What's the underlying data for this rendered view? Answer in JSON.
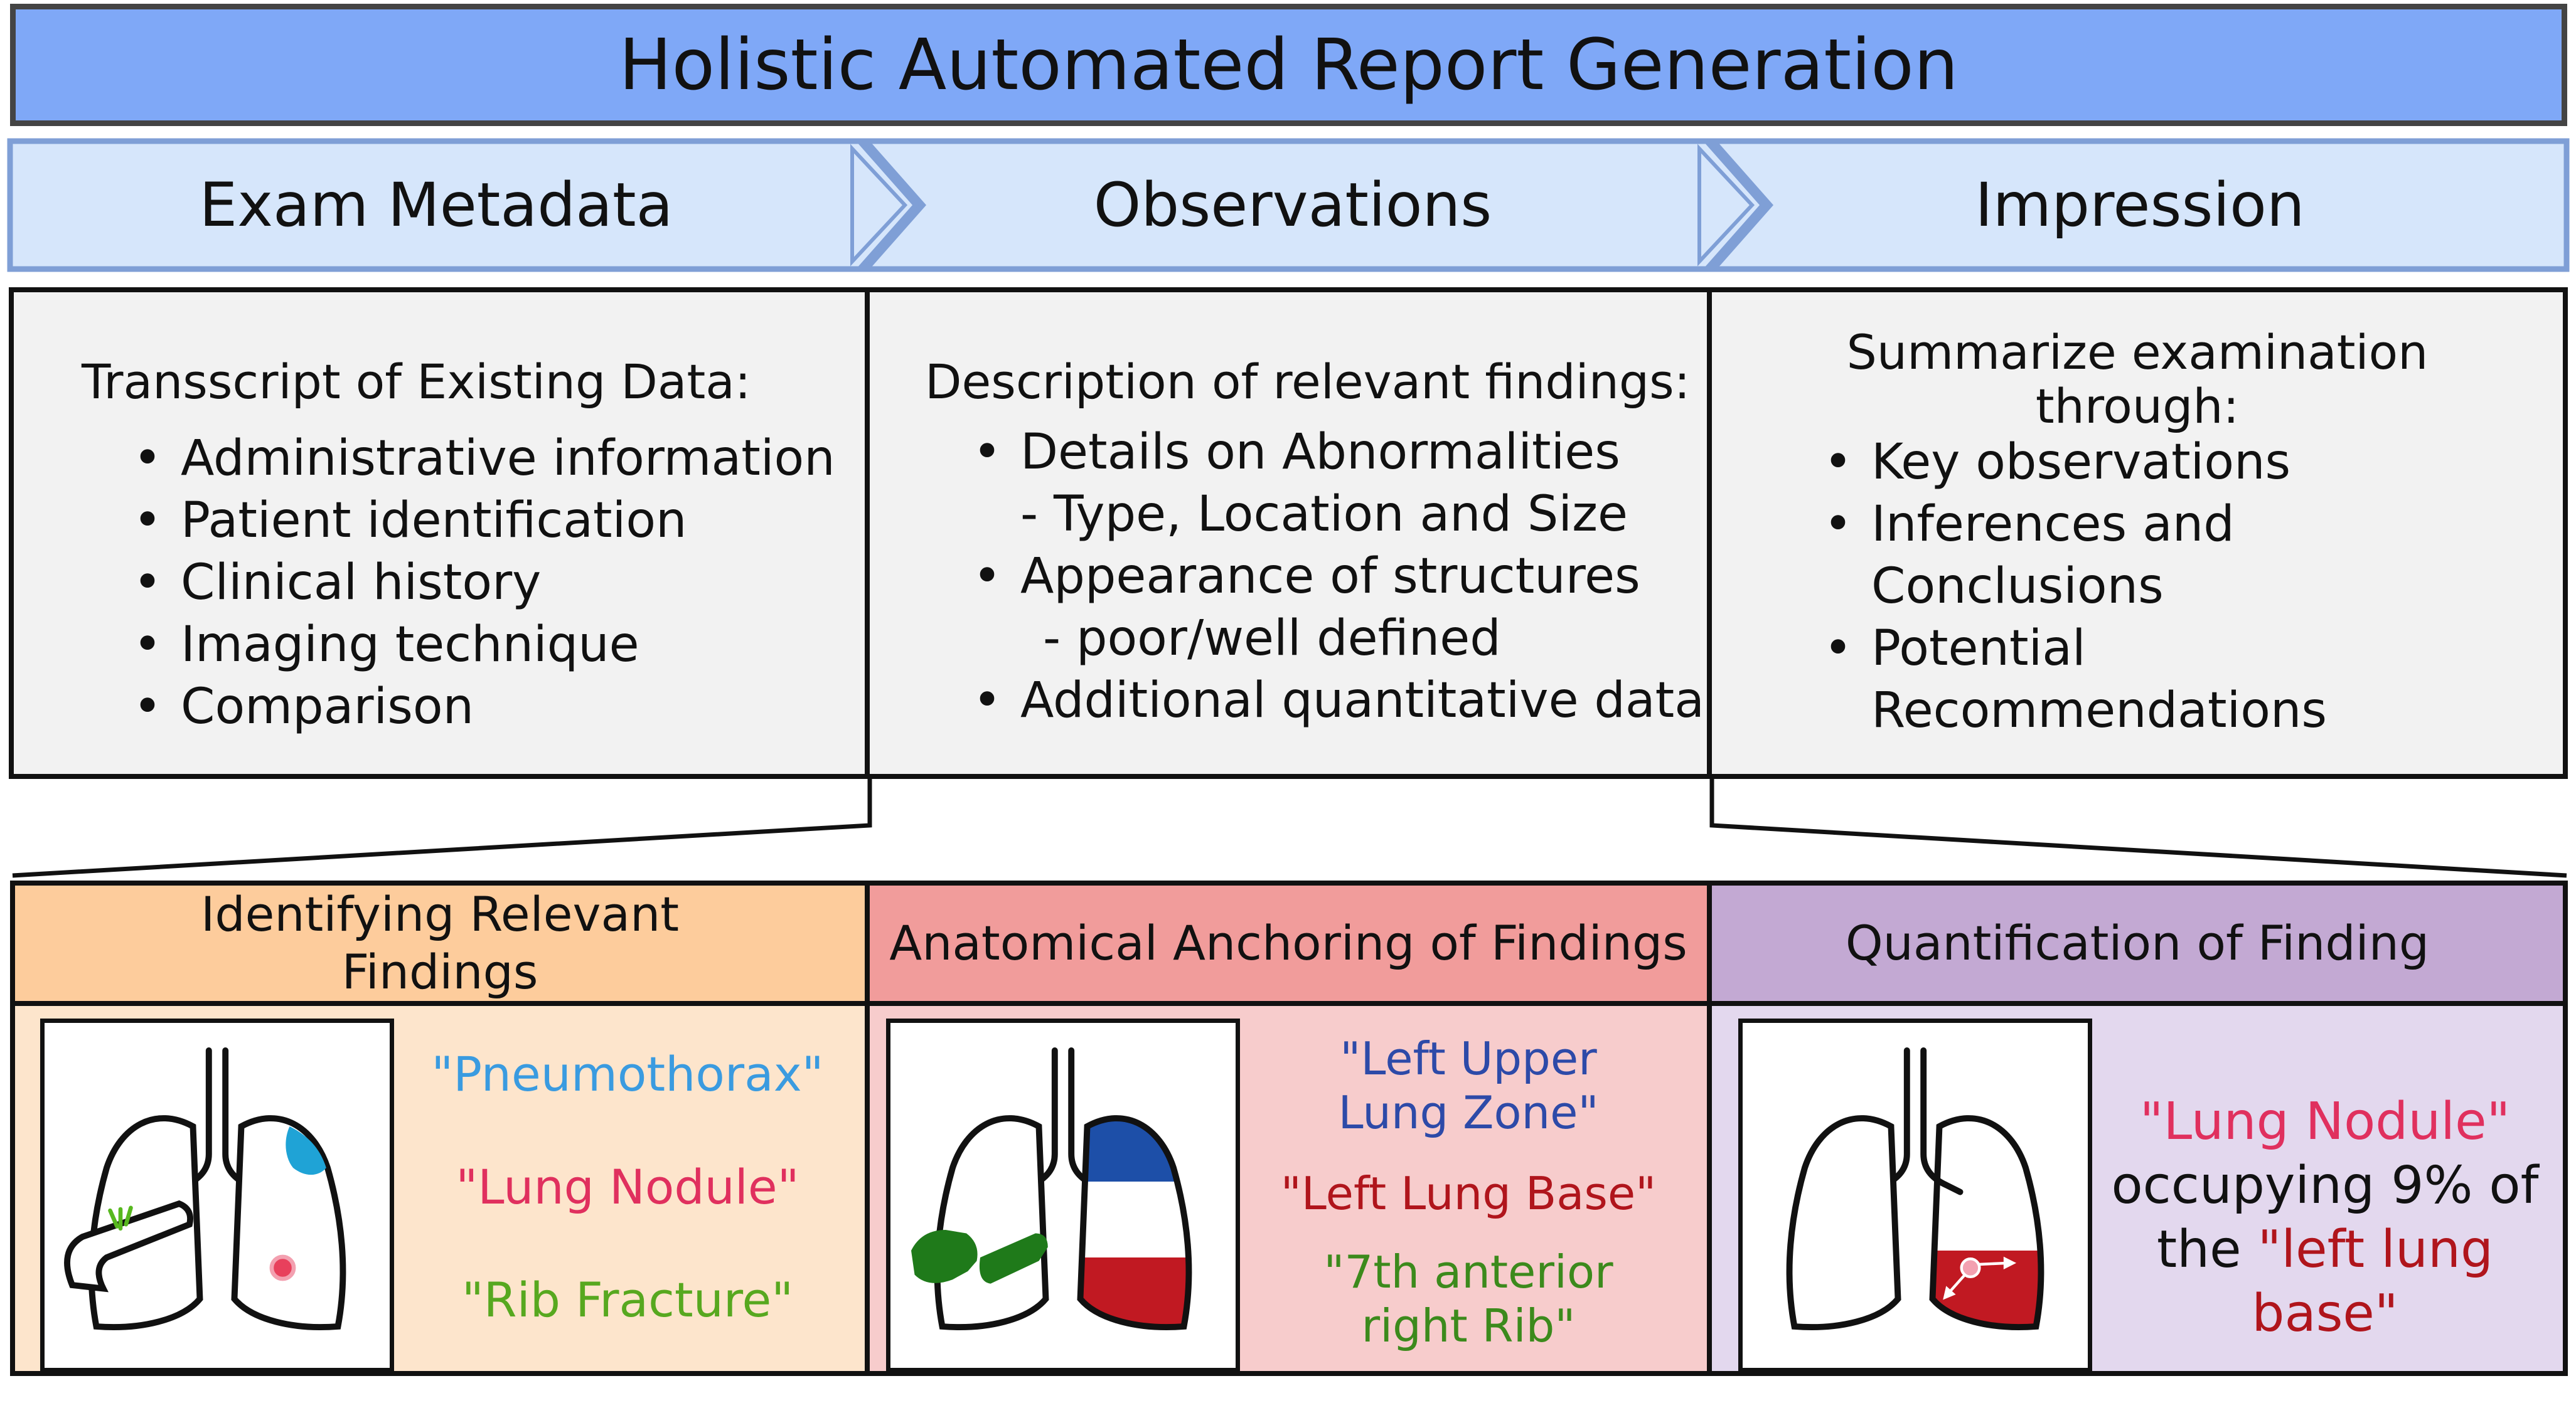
{
  "title": "Holistic Automated Report Generation",
  "stages": [
    {
      "label": "Exam Metadata"
    },
    {
      "label": "Observations"
    },
    {
      "label": "Impression"
    }
  ],
  "metadata_box": {
    "heading": "Transscript of Existing Data:",
    "items": [
      "Administrative information",
      "Patient identification",
      "Clinical history",
      "Imaging technique",
      "Comparison"
    ]
  },
  "observations_box": {
    "heading": "Description of relevant findings:",
    "items": [
      {
        "main": "Details on Abnormalities",
        "sub": "- Type, Location and Size"
      },
      {
        "main": "Appearance of structures",
        "sub": "- poor/well defined"
      },
      {
        "main": "Additional quantitative data",
        "sub": ""
      }
    ]
  },
  "impression_box": {
    "heading_line1": "Summarize examination",
    "heading_line2": "through:",
    "items": [
      {
        "main": "Key observations",
        "cont": ""
      },
      {
        "main": "Inferences and",
        "cont": "Conclusions"
      },
      {
        "main": "Potential",
        "cont": "Recommendations"
      }
    ]
  },
  "panels": [
    {
      "heading_line1": "Identifying Relevant",
      "heading_line2": "Findings",
      "color": "#fdcc9c",
      "body_color": "#fde5cc",
      "terms": [
        {
          "text": "\"Pneumothorax\"",
          "color": "#3a9be0"
        },
        {
          "text": "\"Lung Nodule\"",
          "color": "#e0305e"
        },
        {
          "text": "\"Rib Fracture\"",
          "color": "#57a81f"
        }
      ]
    },
    {
      "heading": "Anatomical Anchoring of Findings",
      "color": "#f19c9b",
      "body_color": "#f7cccc",
      "terms": [
        {
          "line1": "\"Left Upper",
          "line2": "Lung Zone\"",
          "color": "#2d4aa8"
        },
        {
          "text": "\"Left Lung Base\"",
          "color": "#b0151c"
        },
        {
          "line1": "\"7th anterior",
          "line2": "right Rib\"",
          "color": "#3c8a1c"
        }
      ]
    },
    {
      "heading": "Quantification of Finding",
      "color": "#c3a9d3",
      "body_color": "#e3d8ee",
      "quant": {
        "term": "\"Lung Nodule\"",
        "middle": "occupying 9% of",
        "prefix": "the ",
        "region": "\"left lung base\"",
        "term_color": "#e0305e",
        "region_color": "#b0151c"
      }
    }
  ]
}
